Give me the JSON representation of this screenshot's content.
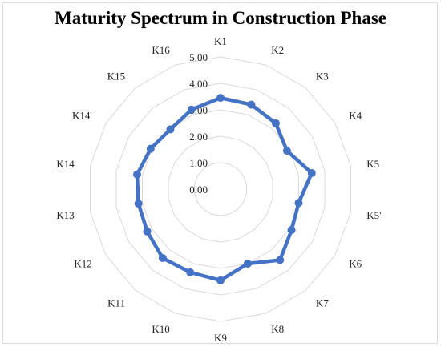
{
  "chart_data": {
    "type": "radar",
    "title": "Maturity Spectrum in Construction Phase",
    "categories": [
      "K1",
      "K2",
      "K3",
      "K4",
      "K5",
      "K5'",
      "K6",
      "K7",
      "K8",
      "K9",
      "K10",
      "K11",
      "K12",
      "K13",
      "K14",
      "K14'",
      "K15",
      "K16"
    ],
    "series": [
      {
        "values": [
          3.45,
          3.4,
          3.25,
          2.9,
          3.5,
          3.0,
          3.1,
          3.5,
          3.0,
          3.45,
          3.35,
          3.4,
          3.2,
          3.15,
          3.2,
          3.05,
          2.95,
          3.2
        ],
        "color": "#4472c4"
      }
    ],
    "r_ticks": [
      "0.00",
      "1.00",
      "2.00",
      "3.00",
      "4.00",
      "5.00"
    ],
    "r_range": [
      0,
      5
    ],
    "grid": true,
    "gridline_color": "#d9d9d9"
  }
}
